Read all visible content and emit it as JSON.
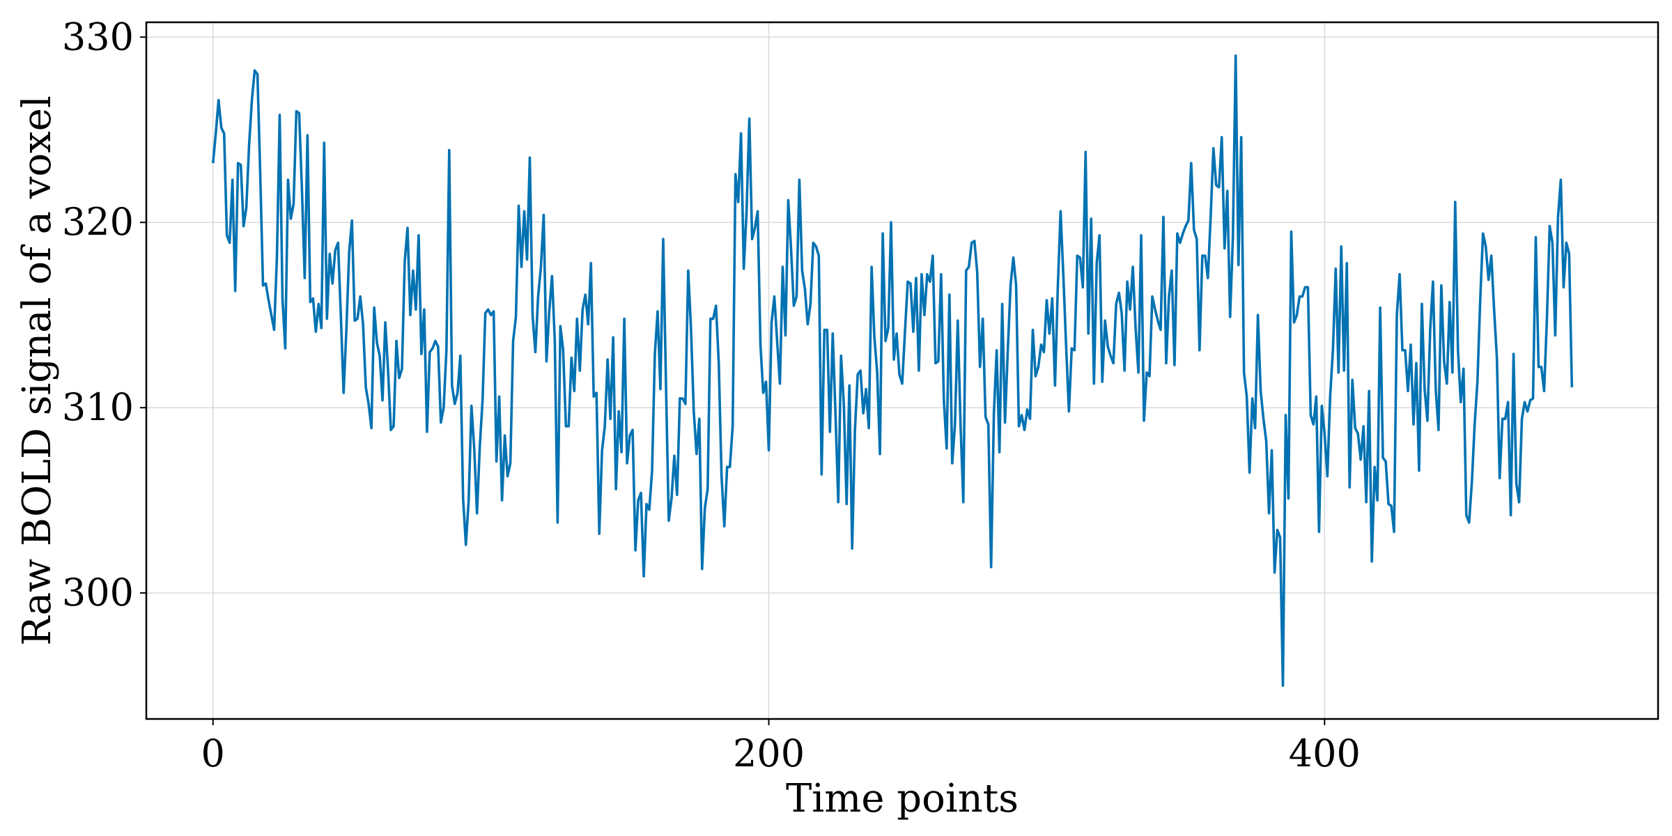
{
  "chart_data": {
    "type": "line",
    "title": "",
    "xlabel": "Time points",
    "ylabel": "Raw BOLD signal of a voxel",
    "xlim": [
      -24,
      520
    ],
    "ylim": [
      293.2,
      330.8
    ],
    "xticks": [
      0,
      200,
      400
    ],
    "yticks": [
      300,
      310,
      320,
      330
    ],
    "grid": true,
    "line_color": "#0072b2",
    "series": [
      {
        "values": [
          323.2,
          324.8,
          326.6,
          325.1,
          324.8,
          319.3,
          318.9,
          322.3,
          316.3,
          323.2,
          323.1,
          319.8,
          320.8,
          324.2,
          326.6,
          328.2,
          328.0,
          322.6,
          316.6,
          316.7,
          315.8,
          315.0,
          314.2,
          318.1,
          325.8,
          315.9,
          313.2,
          322.3,
          320.2,
          321.0,
          326.0,
          325.9,
          321.8,
          317.0,
          324.7,
          315.7,
          315.9,
          314.1,
          315.6,
          314.3,
          324.3,
          314.8,
          318.3,
          316.7,
          318.5,
          318.9,
          315.0,
          310.8,
          314.2,
          318.4,
          320.1,
          314.7,
          314.8,
          316.0,
          314.5,
          311.1,
          310.2,
          308.9,
          315.4,
          313.5,
          312.8,
          310.4,
          314.6,
          312.0,
          308.8,
          309.0,
          313.6,
          311.6,
          312.1,
          317.9,
          319.7,
          315.0,
          317.4,
          315.3,
          319.3,
          312.9,
          315.3,
          308.7,
          313.0,
          313.2,
          313.6,
          313.3,
          309.2,
          310.0,
          313.1,
          323.9,
          311.2,
          310.2,
          310.8,
          312.8,
          305.1,
          302.6,
          305.0,
          310.1,
          307.8,
          304.3,
          307.9,
          310.4,
          315.1,
          315.3,
          315.0,
          315.2,
          307.1,
          310.6,
          305.0,
          308.5,
          306.3,
          307.0,
          313.6,
          314.9,
          320.9,
          317.6,
          320.6,
          318.0,
          323.5,
          315.0,
          313.0,
          316.0,
          317.6,
          320.4,
          312.5,
          315.2,
          317.1,
          313.6,
          303.8,
          314.4,
          313.1,
          309.0,
          309.0,
          312.7,
          310.9,
          314.8,
          312.0,
          315.3,
          316.1,
          314.5,
          317.8,
          310.6,
          310.8,
          303.2,
          307.7,
          309.0,
          312.6,
          309.4,
          313.8,
          305.6,
          309.8,
          307.6,
          314.8,
          307.0,
          308.5,
          308.8,
          302.3,
          305.0,
          305.4,
          300.9,
          304.8,
          304.5,
          306.6,
          312.9,
          315.2,
          311.0,
          319.1,
          311.3,
          303.9,
          305.1,
          307.4,
          305.3,
          310.5,
          310.5,
          310.2,
          317.4,
          314.3,
          309.8,
          307.5,
          309.4,
          301.3,
          304.6,
          305.6,
          314.8,
          314.8,
          315.5,
          312.4,
          306.3,
          303.6,
          306.8,
          306.8,
          309.0,
          322.6,
          321.1,
          324.8,
          317.5,
          320.6,
          325.6,
          319.1,
          319.7,
          320.6,
          313.4,
          310.8,
          311.4,
          307.7,
          314.6,
          316.0,
          313.6,
          311.3,
          317.6,
          313.9,
          321.2,
          318.6,
          315.5,
          316.0,
          322.3,
          317.4,
          316.4,
          314.5,
          315.6,
          318.9,
          318.7,
          318.2,
          306.4,
          314.2,
          314.2,
          308.7,
          314.0,
          309.7,
          304.9,
          312.8,
          310.2,
          304.8,
          311.2,
          302.4,
          308.8,
          311.8,
          312.0,
          309.7,
          311.0,
          308.9,
          317.6,
          313.8,
          311.9,
          307.5,
          319.4,
          313.6,
          314.3,
          320.0,
          312.6,
          314.0,
          311.8,
          311.3,
          314.1,
          316.8,
          316.7,
          314.1,
          317.0,
          312.0,
          317.2,
          315.0,
          317.2,
          316.8,
          318.2,
          312.4,
          312.5,
          317.2,
          310.4,
          307.8,
          316.1,
          307.0,
          309.1,
          314.7,
          309.1,
          304.9,
          317.4,
          317.6,
          318.9,
          319.0,
          317.3,
          312.2,
          314.8,
          309.5,
          309.1,
          301.4,
          309.7,
          313.1,
          307.6,
          315.6,
          309.2,
          313.1,
          316.6,
          318.1,
          316.6,
          309.0,
          309.6,
          308.8,
          309.9,
          309.4,
          314.2,
          311.7,
          312.2,
          313.4,
          313.0,
          315.8,
          314.0,
          315.9,
          311.2,
          316.5,
          320.6,
          317.1,
          313.3,
          309.8,
          313.2,
          313.1,
          318.2,
          318.1,
          316.5,
          323.8,
          314.0,
          320.2,
          311.3,
          317.8,
          319.3,
          311.4,
          314.7,
          313.3,
          312.8,
          312.4,
          315.6,
          316.2,
          315.1,
          312.0,
          316.8,
          315.3,
          317.6,
          314.3,
          311.9,
          319.3,
          309.3,
          311.9,
          311.7,
          316.0,
          315.3,
          314.7,
          314.2,
          320.3,
          312.4,
          316.0,
          317.4,
          312.3,
          319.4,
          318.9,
          319.4,
          319.8,
          320.1,
          323.2,
          319.6,
          319.1,
          313.1,
          318.2,
          318.2,
          317.0,
          320.3,
          324.0,
          322.0,
          321.9,
          324.6,
          318.6,
          321.7,
          314.9,
          319.2,
          329.0,
          317.7,
          324.6,
          311.9,
          310.6,
          306.5,
          310.5,
          308.9,
          315.0,
          310.9,
          309.4,
          308.2,
          304.3,
          307.7,
          301.1,
          303.4,
          303.0,
          295.0,
          309.6,
          305.1,
          319.5,
          314.6,
          315.0,
          316.0,
          316.0,
          316.5,
          316.5,
          309.6,
          309.1,
          310.6,
          303.3,
          310.1,
          308.6,
          306.3,
          310.6,
          313.1,
          317.5,
          311.9,
          318.7,
          312.0,
          317.8,
          305.7,
          311.5,
          308.9,
          308.6,
          307.2,
          309.0,
          304.9,
          310.9,
          301.7,
          306.8,
          305.0,
          315.4,
          307.3,
          307.1,
          304.8,
          304.7,
          303.3,
          315.0,
          317.2,
          313.1,
          313.1,
          310.9,
          313.4,
          309.1,
          312.4,
          306.6,
          315.6,
          311.0,
          309.3,
          314.2,
          316.8,
          311.0,
          308.8,
          316.6,
          312.5,
          311.3,
          315.7,
          311.9,
          321.1,
          313.1,
          310.3,
          312.1,
          304.2,
          303.8,
          306.0,
          309.1,
          311.4,
          315.8,
          319.4,
          318.7,
          316.9,
          318.2,
          315.3,
          312.7,
          306.2,
          309.4,
          309.4,
          310.3,
          304.2,
          312.9,
          305.9,
          304.9,
          309.4,
          310.3,
          309.8,
          310.4,
          310.5,
          319.2,
          312.2,
          312.2,
          310.9,
          314.8,
          319.8,
          318.9,
          313.9,
          320.3,
          322.3,
          316.5,
          318.9,
          318.3,
          311.1
        ]
      }
    ]
  }
}
